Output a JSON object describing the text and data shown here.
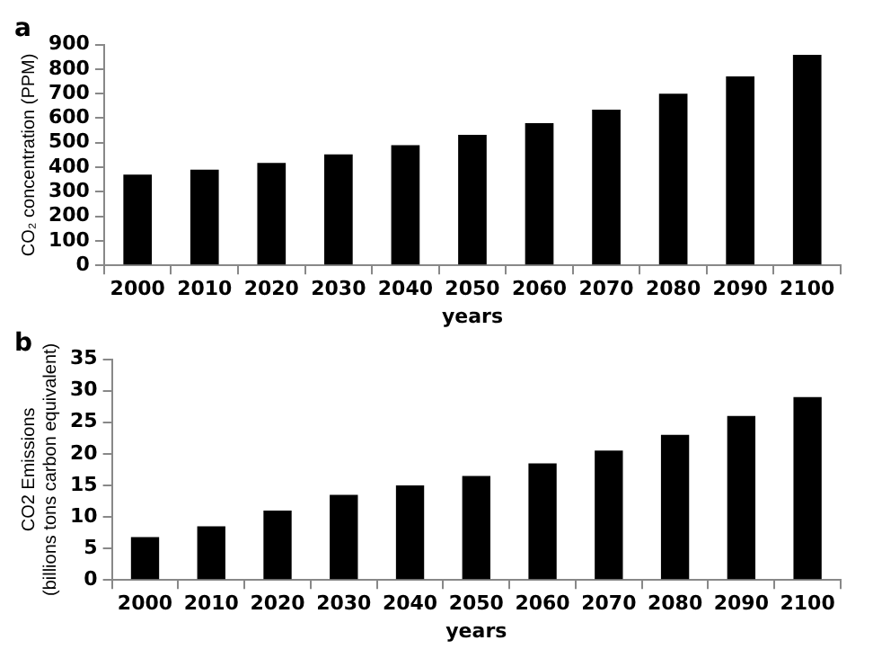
{
  "chart_data": [
    {
      "type": "bar",
      "title": "a",
      "xlabel": "years",
      "ylabel": "CO₂ concentration (PPM)",
      "categories": [
        "2000",
        "2010",
        "2020",
        "2030",
        "2040",
        "2050",
        "2060",
        "2070",
        "2080",
        "2090",
        "2100"
      ],
      "values": [
        370,
        390,
        418,
        452,
        490,
        532,
        580,
        635,
        700,
        770,
        858
      ],
      "color": "#000000",
      "ylim": [
        0,
        900
      ],
      "yticks": [
        0,
        100,
        200,
        300,
        400,
        500,
        600,
        700,
        800,
        900
      ],
      "grid": false
    },
    {
      "type": "bar",
      "title": "b",
      "xlabel": "years",
      "ylabel": "CO2 Emissions\n(billions tons carbon equivalent)",
      "categories": [
        "2000",
        "2010",
        "2020",
        "2030",
        "2040",
        "2050",
        "2060",
        "2070",
        "2080",
        "2090",
        "2100"
      ],
      "values": [
        6.8,
        8.5,
        11,
        13.5,
        15,
        16.5,
        18.5,
        20.5,
        23,
        26,
        29
      ],
      "color": "#000000",
      "ylim": [
        0,
        35
      ],
      "yticks": [
        0,
        5,
        10,
        15,
        20,
        25,
        30,
        35
      ],
      "grid": false
    }
  ]
}
